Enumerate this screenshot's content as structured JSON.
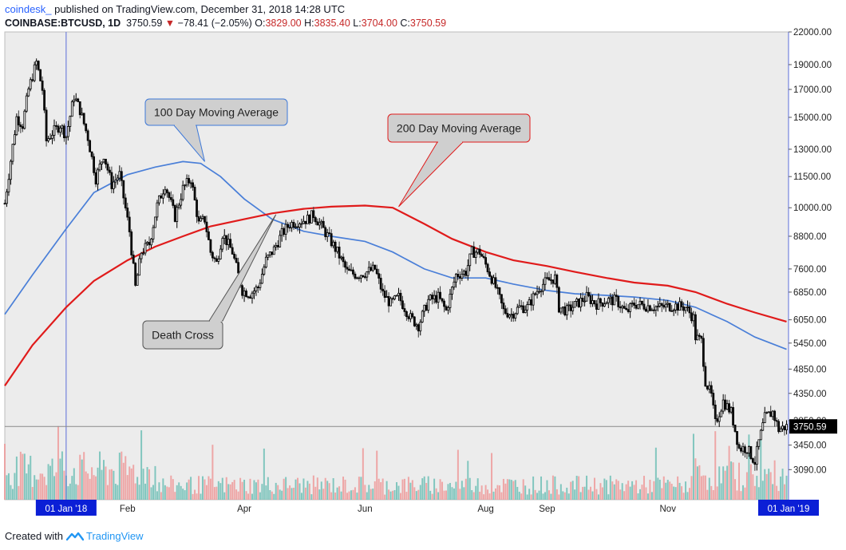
{
  "header": {
    "author": "coindesk_",
    "published": "published on TradingView.com, December 31, 2018 14:28 UTC",
    "symbol": "COINBASE:BTCUSD, 1D",
    "last": "3750.59",
    "change_arrow": "▼",
    "change": "−78.41 (−2.05%)",
    "o_label": "O:",
    "o_value": "3829.00",
    "h_label": "H:",
    "h_value": "3835.40",
    "l_label": "L:",
    "l_value": "3704.00",
    "c_label": "C:",
    "c_value": "3750.59"
  },
  "footer": {
    "created_with": "Created with",
    "brand": "TradingView"
  },
  "colors": {
    "background": "#ececec",
    "ma100": "#4a7fd8",
    "ma200": "#e01b1b",
    "candle_body": "#ffffff",
    "candle_border": "#000000",
    "volume_up": "#6fc0b6",
    "volume_down": "#ef9a9a",
    "vline": "#5b6dd8",
    "hline": "#8a8a8a"
  },
  "chart_data": {
    "type": "candlestick",
    "x_range": [
      "2017-12-01",
      "2019-01-01"
    ],
    "y_range": [
      2700,
      22000
    ],
    "y_scale": "log",
    "y_ticks": [
      "22000.00",
      "19000.00",
      "17000.00",
      "15000.00",
      "13000.00",
      "11500.00",
      "10000.00",
      "8800.00",
      "7600.00",
      "6850.00",
      "6050.00",
      "5450.00",
      "4850.00",
      "4350.00",
      "3850.00",
      "3450.00",
      "3090.00"
    ],
    "x_ticks": [
      "01 Jan '18",
      "Feb",
      "Apr",
      "Jun",
      "Aug",
      "Sep",
      "Nov",
      "01 Jan '19"
    ],
    "x_tick_dates": [
      "2018-01-01",
      "2018-02-01",
      "2018-04-01",
      "2018-06-01",
      "2018-08-01",
      "2018-09-01",
      "2018-11-01",
      "2019-01-01"
    ],
    "highlighted_x_ticks": [
      "01 Jan '18",
      "01 Jan '19"
    ],
    "last_price_label": "3750.59",
    "last_price": 3750.59,
    "price_path": [
      [
        "2017-12-01",
        10200
      ],
      [
        "2017-12-07",
        15000
      ],
      [
        "2017-12-10",
        14500
      ],
      [
        "2017-12-13",
        17000
      ],
      [
        "2017-12-17",
        19200
      ],
      [
        "2017-12-20",
        17000
      ],
      [
        "2017-12-22",
        13500
      ],
      [
        "2017-12-25",
        14000
      ],
      [
        "2017-12-29",
        14500
      ],
      [
        "2018-01-01",
        13800
      ],
      [
        "2018-01-05",
        16500
      ],
      [
        "2018-01-08",
        15500
      ],
      [
        "2018-01-12",
        13700
      ],
      [
        "2018-01-16",
        11400
      ],
      [
        "2018-01-20",
        12700
      ],
      [
        "2018-01-24",
        11100
      ],
      [
        "2018-01-28",
        11600
      ],
      [
        "2018-02-02",
        9000
      ],
      [
        "2018-02-05",
        7000
      ],
      [
        "2018-02-08",
        8200
      ],
      [
        "2018-02-12",
        8500
      ],
      [
        "2018-02-16",
        10100
      ],
      [
        "2018-02-20",
        11100
      ],
      [
        "2018-02-25",
        9600
      ],
      [
        "2018-03-01",
        10900
      ],
      [
        "2018-03-05",
        11400
      ],
      [
        "2018-03-09",
        9300
      ],
      [
        "2018-03-12",
        9500
      ],
      [
        "2018-03-15",
        8200
      ],
      [
        "2018-03-18",
        7800
      ],
      [
        "2018-03-21",
        8900
      ],
      [
        "2018-03-26",
        8200
      ],
      [
        "2018-03-31",
        6900
      ],
      [
        "2018-04-04",
        6800
      ],
      [
        "2018-04-08",
        7000
      ],
      [
        "2018-04-12",
        7900
      ],
      [
        "2018-04-16",
        8300
      ],
      [
        "2018-04-20",
        8900
      ],
      [
        "2018-04-24",
        9300
      ],
      [
        "2018-04-28",
        9400
      ],
      [
        "2018-05-03",
        9500
      ],
      [
        "2018-05-06",
        9700
      ],
      [
        "2018-05-10",
        9200
      ],
      [
        "2018-05-14",
        8700
      ],
      [
        "2018-05-18",
        8200
      ],
      [
        "2018-05-23",
        7500
      ],
      [
        "2018-05-28",
        7400
      ],
      [
        "2018-06-02",
        7500
      ],
      [
        "2018-06-06",
        7600
      ],
      [
        "2018-06-10",
        6800
      ],
      [
        "2018-06-14",
        6500
      ],
      [
        "2018-06-18",
        6700
      ],
      [
        "2018-06-24",
        6100
      ],
      [
        "2018-06-28",
        5900
      ],
      [
        "2018-07-03",
        6600
      ],
      [
        "2018-07-08",
        6700
      ],
      [
        "2018-07-12",
        6300
      ],
      [
        "2018-07-17",
        7400
      ],
      [
        "2018-07-22",
        7500
      ],
      [
        "2018-07-25",
        8200
      ],
      [
        "2018-07-29",
        8200
      ],
      [
        "2018-08-02",
        7600
      ],
      [
        "2018-08-06",
        7000
      ],
      [
        "2018-08-10",
        6300
      ],
      [
        "2018-08-14",
        6200
      ],
      [
        "2018-08-18",
        6400
      ],
      [
        "2018-08-22",
        6400
      ],
      [
        "2018-08-28",
        7000
      ],
      [
        "2018-09-01",
        7200
      ],
      [
        "2018-09-05",
        7300
      ],
      [
        "2018-09-07",
        6400
      ],
      [
        "2018-09-11",
        6300
      ],
      [
        "2018-09-16",
        6500
      ],
      [
        "2018-09-21",
        6700
      ],
      [
        "2018-09-26",
        6500
      ],
      [
        "2018-10-01",
        6600
      ],
      [
        "2018-10-06",
        6600
      ],
      [
        "2018-10-11",
        6250
      ],
      [
        "2018-10-15",
        6500
      ],
      [
        "2018-10-20",
        6450
      ],
      [
        "2018-10-28",
        6400
      ],
      [
        "2018-11-04",
        6450
      ],
      [
        "2018-11-10",
        6400
      ],
      [
        "2018-11-14",
        6100
      ],
      [
        "2018-11-15",
        5600
      ],
      [
        "2018-11-18",
        5500
      ],
      [
        "2018-11-20",
        4600
      ],
      [
        "2018-11-23",
        4300
      ],
      [
        "2018-11-25",
        3800
      ],
      [
        "2018-11-29",
        4200
      ],
      [
        "2018-12-03",
        4000
      ],
      [
        "2018-12-07",
        3400
      ],
      [
        "2018-12-11",
        3400
      ],
      [
        "2018-12-15",
        3200
      ],
      [
        "2018-12-17",
        3500
      ],
      [
        "2018-12-20",
        3900
      ],
      [
        "2018-12-24",
        4000
      ],
      [
        "2018-12-27",
        3700
      ],
      [
        "2018-12-31",
        3750
      ]
    ],
    "series": [
      {
        "name": "100 Day Moving Average",
        "color": "#4a7fd8",
        "points": [
          [
            "2017-12-01",
            6200
          ],
          [
            "2017-12-15",
            7400
          ],
          [
            "2018-01-01",
            9100
          ],
          [
            "2018-01-15",
            10700
          ],
          [
            "2018-02-01",
            11600
          ],
          [
            "2018-02-15",
            12000
          ],
          [
            "2018-03-01",
            12300
          ],
          [
            "2018-03-10",
            12200
          ],
          [
            "2018-03-20",
            11500
          ],
          [
            "2018-04-01",
            10400
          ],
          [
            "2018-04-15",
            9500
          ],
          [
            "2018-05-01",
            9000
          ],
          [
            "2018-05-15",
            8800
          ],
          [
            "2018-06-01",
            8600
          ],
          [
            "2018-06-15",
            8200
          ],
          [
            "2018-07-01",
            7600
          ],
          [
            "2018-07-15",
            7300
          ],
          [
            "2018-08-01",
            7300
          ],
          [
            "2018-08-15",
            7100
          ],
          [
            "2018-09-01",
            6900
          ],
          [
            "2018-09-15",
            6800
          ],
          [
            "2018-10-01",
            6750
          ],
          [
            "2018-10-15",
            6700
          ],
          [
            "2018-11-01",
            6600
          ],
          [
            "2018-11-15",
            6400
          ],
          [
            "2018-12-01",
            6000
          ],
          [
            "2018-12-15",
            5600
          ],
          [
            "2018-12-31",
            5300
          ]
        ]
      },
      {
        "name": "200 Day Moving Average",
        "color": "#e01b1b",
        "points": [
          [
            "2017-12-01",
            4500
          ],
          [
            "2017-12-15",
            5400
          ],
          [
            "2018-01-01",
            6400
          ],
          [
            "2018-01-15",
            7200
          ],
          [
            "2018-02-01",
            7900
          ],
          [
            "2018-02-15",
            8400
          ],
          [
            "2018-03-01",
            8800
          ],
          [
            "2018-03-15",
            9200
          ],
          [
            "2018-04-01",
            9500
          ],
          [
            "2018-04-15",
            9750
          ],
          [
            "2018-05-01",
            9950
          ],
          [
            "2018-05-15",
            10050
          ],
          [
            "2018-06-01",
            10100
          ],
          [
            "2018-06-15",
            10000
          ],
          [
            "2018-07-01",
            9300
          ],
          [
            "2018-07-15",
            8700
          ],
          [
            "2018-08-01",
            8200
          ],
          [
            "2018-08-15",
            7900
          ],
          [
            "2018-09-01",
            7700
          ],
          [
            "2018-09-15",
            7500
          ],
          [
            "2018-10-01",
            7300
          ],
          [
            "2018-10-15",
            7150
          ],
          [
            "2018-11-01",
            7050
          ],
          [
            "2018-11-15",
            6850
          ],
          [
            "2018-12-01",
            6500
          ],
          [
            "2018-12-15",
            6250
          ],
          [
            "2018-12-31",
            6000
          ]
        ]
      }
    ],
    "annotations": [
      {
        "text": "100 Day Moving Average",
        "target_date": "2018-03-12",
        "target_price": 12300,
        "style": "blue"
      },
      {
        "text": "200 Day Moving Average",
        "target_date": "2018-06-18",
        "target_price": 10050,
        "style": "red"
      },
      {
        "text": "Death Cross",
        "target_date": "2018-04-17",
        "target_price": 9700,
        "style": "gray"
      }
    ]
  }
}
